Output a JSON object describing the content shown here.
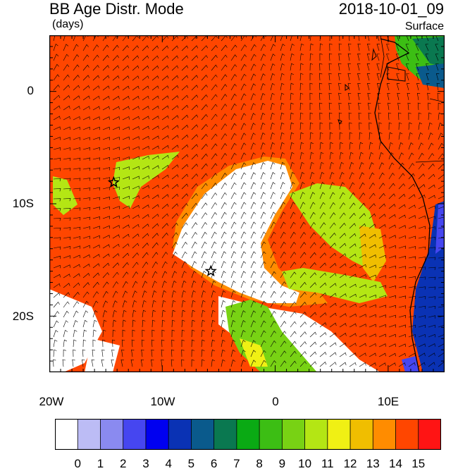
{
  "header": {
    "title": "BB Age Distr. Mode",
    "units": "(days)",
    "timestamp": "2018-10-01_09",
    "level": "Surface"
  },
  "axes": {
    "lat_labels": [
      {
        "value": 0,
        "text": "0"
      },
      {
        "value": -10,
        "text": "10S"
      },
      {
        "value": -20,
        "text": "20S"
      }
    ],
    "lon_labels": [
      {
        "value": -20,
        "text": "20W"
      },
      {
        "value": -10,
        "text": "10W"
      },
      {
        "value": 0,
        "text": "0"
      },
      {
        "value": 10,
        "text": "10E"
      }
    ],
    "lon_range": [
      -20,
      15
    ],
    "lat_range": [
      -25,
      5
    ]
  },
  "colorbar": {
    "labels": [
      "0",
      "1",
      "2",
      "3",
      "4",
      "5",
      "6",
      "7",
      "8",
      "9",
      "10",
      "11",
      "12",
      "13",
      "14",
      "15"
    ],
    "colors": [
      "#ffffff",
      "#bcbcf5",
      "#8a8af0",
      "#4646f0",
      "#0000f0",
      "#0a32b4",
      "#0a5a8c",
      "#0a7850",
      "#0aaa14",
      "#3cbe14",
      "#78d214",
      "#b4e614",
      "#f0f014",
      "#f0be00",
      "#ff8c00",
      "#ff4600",
      "#ff1414"
    ]
  },
  "markers": [
    {
      "name": "star",
      "lon": -14.3,
      "lat": -8.1
    },
    {
      "name": "star",
      "lon": -5.7,
      "lat": -16.0
    }
  ],
  "field_colors": {
    "background": "#ff4600",
    "young": "#ffffff",
    "mid": "#b4e614",
    "mid_edge": "#f0be00",
    "orange": "#ff8c00",
    "green_dark": "#0a7850",
    "green": "#3cbe14",
    "blue": "#4646f0",
    "blue_dark": "#0a32b4",
    "teal": "#0a5a8c"
  }
}
